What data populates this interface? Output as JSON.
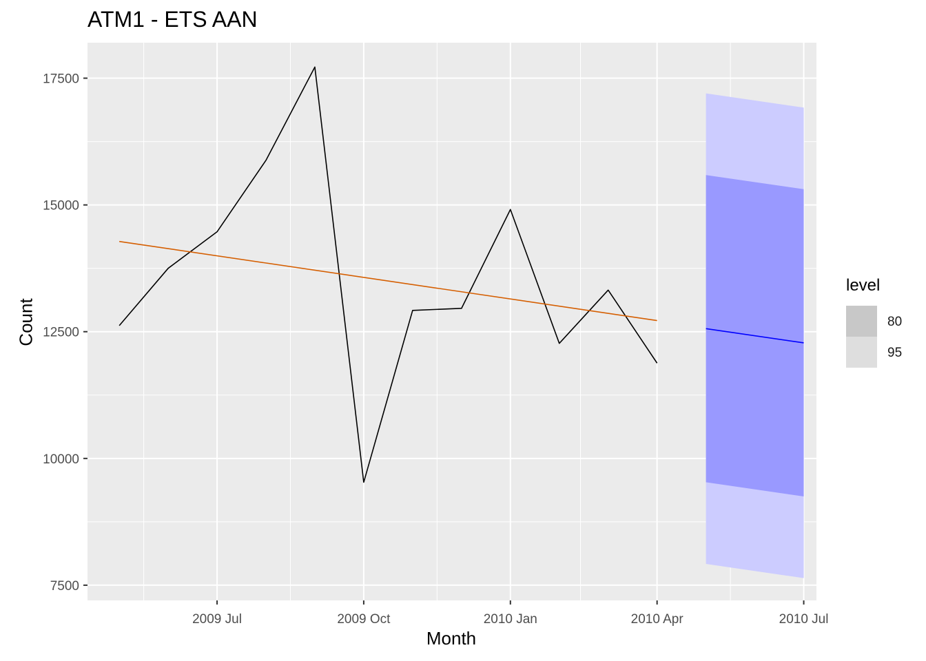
{
  "chart_data": {
    "type": "line",
    "title": "ATM1 - ETS AAN",
    "xlabel": "Month",
    "ylabel": "Count",
    "x_ticks": [
      "2009 Jul",
      "2009 Oct",
      "2010 Jan",
      "2010 Apr",
      "2010 Jul"
    ],
    "y_ticks": [
      "7500",
      "10000",
      "12500",
      "15000",
      "17500"
    ],
    "ylim": [
      7200,
      18200
    ],
    "grid": true,
    "legend_placement": "right",
    "legend": {
      "title": "level",
      "items": [
        {
          "label": "80",
          "color": "#c8c8c8"
        },
        {
          "label": "95",
          "color": "#dedede"
        }
      ]
    },
    "series": [
      {
        "type": "line",
        "color": "#000000",
        "x": [
          "2009-05",
          "2009-06",
          "2009-07",
          "2009-08",
          "2009-09",
          "2009-10",
          "2009-11",
          "2009-12",
          "2010-01",
          "2010-02",
          "2010-03",
          "2010-04"
        ],
        "values": [
          12620,
          13750,
          14470,
          15880,
          17720,
          9530,
          12920,
          12960,
          14910,
          12270,
          13320,
          11880
        ]
      },
      {
        "type": "line",
        "color": "#D55E00",
        "x": [
          "2009-05",
          "2010-04"
        ],
        "values": [
          14280,
          12720
        ]
      },
      {
        "type": "forecast",
        "color": "#0000ff",
        "x": [
          "2010-05",
          "2010-07"
        ],
        "mean": [
          12560,
          12280
        ],
        "lo80": [
          9530,
          9250
        ],
        "hi80": [
          15590,
          15310
        ],
        "lo95": [
          7920,
          7640
        ],
        "hi95": [
          17200,
          16920
        ]
      }
    ],
    "colors": {
      "panel": "#ebebeb",
      "grid": "#ffffff",
      "band80": "#9999ff",
      "band95": "#ccccff",
      "tick_text": "#4d4d4d"
    }
  }
}
